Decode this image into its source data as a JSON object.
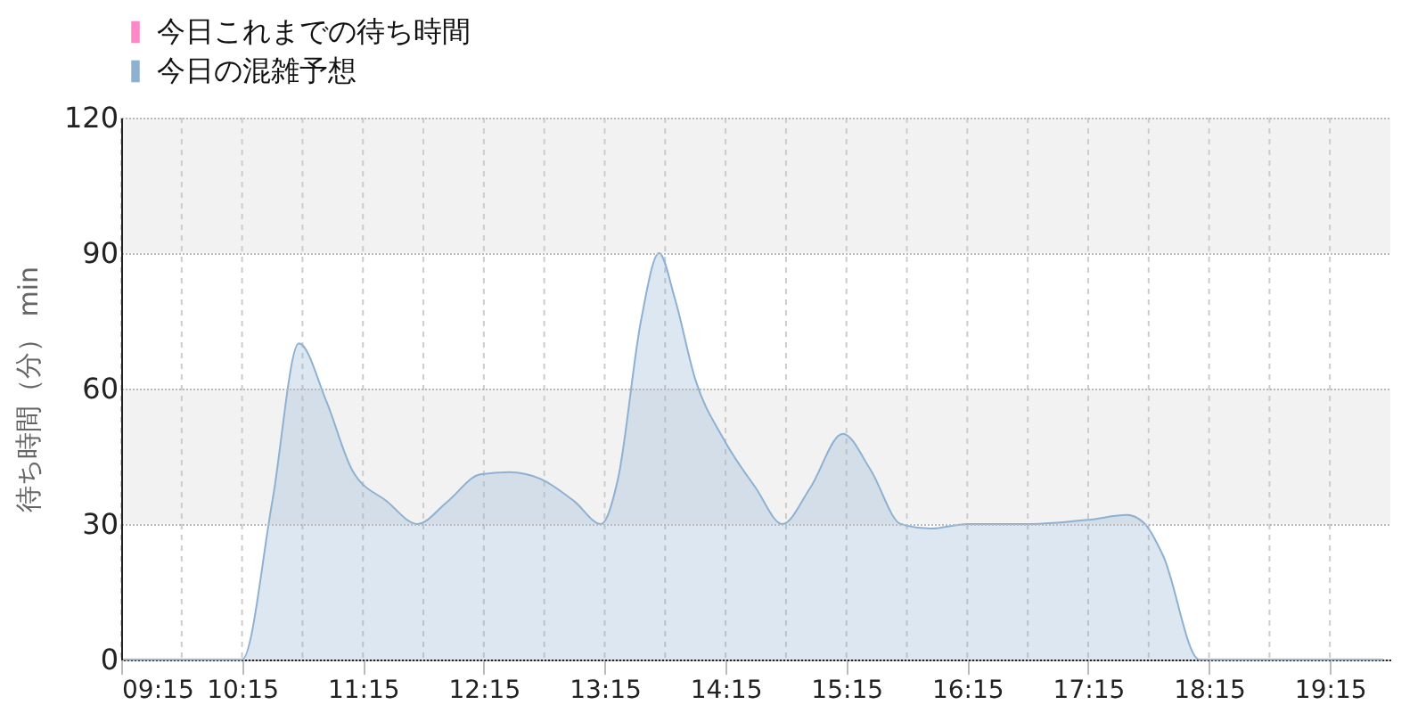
{
  "chart_data": {
    "type": "area",
    "ylabel": "待ち時間（分） min",
    "x": [
      9.25,
      10.0,
      10.25,
      10.5,
      10.72,
      10.95,
      11.16,
      11.45,
      11.7,
      11.95,
      12.22,
      12.46,
      12.72,
      13.0,
      13.22,
      13.36,
      13.55,
      13.7,
      13.83,
      14.0,
      14.23,
      14.5,
      14.72,
      14.95,
      15.22,
      15.45,
      15.7,
      15.95,
      16.25,
      16.75,
      17.27,
      17.57,
      17.72,
      17.87,
      18.17,
      18.5,
      19.0,
      19.69
    ],
    "series": [
      {
        "name": "今日これまでの待ち時間",
        "color": "#ff88c8",
        "values": [
          null,
          null,
          null,
          null,
          null,
          null,
          null,
          null,
          null,
          null,
          null,
          null,
          null,
          null,
          null,
          null,
          null,
          null,
          null,
          null,
          null,
          null,
          null,
          null,
          null,
          null,
          null,
          null,
          null,
          null,
          null,
          null,
          null,
          null,
          null,
          null,
          null,
          null
        ]
      },
      {
        "name": "今日の混雑予想",
        "color": "#8eb1d2",
        "values": [
          0,
          0,
          0,
          35,
          70,
          57,
          42,
          35,
          30,
          35,
          41,
          41.5,
          40,
          35,
          30,
          40,
          75,
          90,
          80,
          62,
          49,
          38,
          30,
          38,
          50,
          42,
          30,
          29,
          30,
          30,
          31,
          32,
          30,
          23,
          0,
          0,
          0,
          0
        ]
      }
    ],
    "xlim": [
      9.25,
      19.75
    ],
    "xticks": [
      {
        "value": 9.25,
        "label": "09:15"
      },
      {
        "value": 9.75,
        "label": null
      },
      {
        "value": 10.25,
        "label": "10:15"
      },
      {
        "value": 10.75,
        "label": null
      },
      {
        "value": 11.25,
        "label": "11:15"
      },
      {
        "value": 11.75,
        "label": null
      },
      {
        "value": 12.25,
        "label": "12:15"
      },
      {
        "value": 12.75,
        "label": null
      },
      {
        "value": 13.25,
        "label": "13:15"
      },
      {
        "value": 13.75,
        "label": null
      },
      {
        "value": 14.25,
        "label": "14:15"
      },
      {
        "value": 14.75,
        "label": null
      },
      {
        "value": 15.25,
        "label": "15:15"
      },
      {
        "value": 15.75,
        "label": null
      },
      {
        "value": 16.25,
        "label": "16:15"
      },
      {
        "value": 16.75,
        "label": null
      },
      {
        "value": 17.25,
        "label": "17:15"
      },
      {
        "value": 17.75,
        "label": null
      },
      {
        "value": 18.25,
        "label": "18:15"
      },
      {
        "value": 18.75,
        "label": null
      },
      {
        "value": 19.25,
        "label": "19:15"
      }
    ],
    "ylim": [
      0,
      120
    ],
    "yticks": [
      0,
      30,
      60,
      90,
      120
    ],
    "bands": [
      {
        "axis": "y",
        "from": 30,
        "to": 60,
        "color": "#f2f2f2"
      },
      {
        "axis": "y",
        "from": 90,
        "to": 120,
        "color": "#f2f2f2"
      }
    ],
    "grid": true,
    "legend": "top left"
  }
}
